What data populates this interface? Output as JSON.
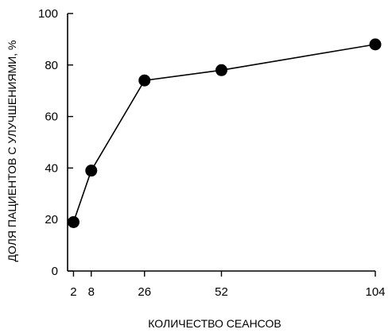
{
  "chart_data": {
    "type": "line",
    "xlabel": "КОЛИЧЕСТВО СЕАНСОВ",
    "ylabel": "ДОЛЯ ПАЦИЕНТОВ С УЛУЧШЕНИЯМИ, %",
    "xlim": [
      0,
      104
    ],
    "ylim": [
      0,
      100
    ],
    "x_ticks": [
      2,
      8,
      26,
      52,
      104
    ],
    "y_ticks": [
      0,
      20,
      40,
      60,
      80,
      100
    ],
    "grid": false,
    "legend": "none",
    "series": [
      {
        "x": [
          2,
          8,
          26,
          52,
          104
        ],
        "y": [
          19,
          39,
          74,
          78,
          88
        ]
      }
    ],
    "colors": {
      "line": "#000000",
      "marker": "#000000",
      "axis": "#000000"
    }
  }
}
